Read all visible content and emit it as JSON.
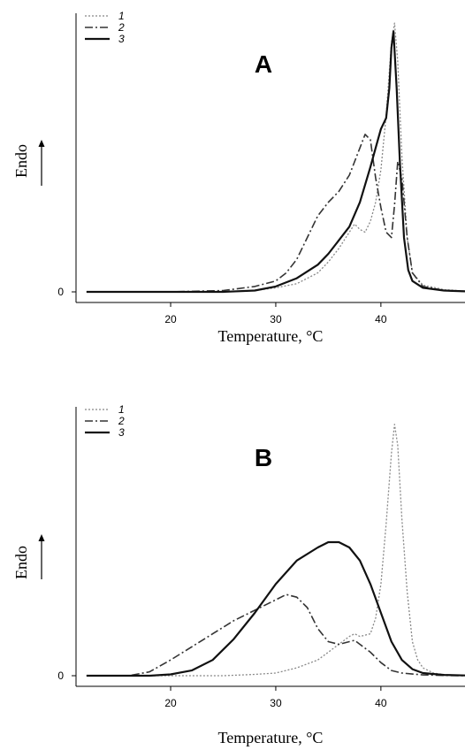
{
  "chart_data": [
    {
      "type": "line",
      "panel_label": "A",
      "xlabel": "Temperature, °C",
      "ylabel": "Endo",
      "xlim": [
        11,
        48
      ],
      "ylim": [
        -0.3,
        10
      ],
      "x_ticks": [
        20,
        30,
        40
      ],
      "y_ticks": [
        0
      ],
      "grid": false,
      "legend_position": "top-left",
      "series": [
        {
          "name": "1",
          "style": "dotted",
          "color": "#888888",
          "points": [
            [
              12,
              0
            ],
            [
              20,
              0
            ],
            [
              25,
              0
            ],
            [
              28,
              0.05
            ],
            [
              30,
              0.15
            ],
            [
              32,
              0.3
            ],
            [
              34,
              0.7
            ],
            [
              35,
              1.1
            ],
            [
              36,
              1.6
            ],
            [
              37,
              2.2
            ],
            [
              37.5,
              2.5
            ],
            [
              38,
              2.3
            ],
            [
              38.5,
              2.2
            ],
            [
              39,
              2.6
            ],
            [
              39.5,
              3.3
            ],
            [
              40,
              4.5
            ],
            [
              40.5,
              6.5
            ],
            [
              41,
              9.2
            ],
            [
              41.3,
              9.9
            ],
            [
              41.6,
              8.5
            ],
            [
              42,
              5.0
            ],
            [
              42.5,
              2.0
            ],
            [
              43,
              0.7
            ],
            [
              44,
              0.25
            ],
            [
              46,
              0.08
            ],
            [
              48,
              0.03
            ]
          ]
        },
        {
          "name": "2",
          "style": "dash-dot",
          "color": "#333333",
          "points": [
            [
              12,
              0
            ],
            [
              20,
              0
            ],
            [
              25,
              0.05
            ],
            [
              28,
              0.2
            ],
            [
              30,
              0.4
            ],
            [
              31,
              0.7
            ],
            [
              32,
              1.2
            ],
            [
              33,
              2.0
            ],
            [
              34,
              2.8
            ],
            [
              35,
              3.3
            ],
            [
              36,
              3.7
            ],
            [
              37,
              4.3
            ],
            [
              38,
              5.3
            ],
            [
              38.5,
              5.8
            ],
            [
              39,
              5.6
            ],
            [
              39.5,
              4.2
            ],
            [
              40,
              3.1
            ],
            [
              40.5,
              2.2
            ],
            [
              41,
              2.0
            ],
            [
              41.3,
              3.2
            ],
            [
              41.6,
              4.8
            ],
            [
              42,
              4.2
            ],
            [
              42.5,
              2.0
            ],
            [
              43,
              0.7
            ],
            [
              44,
              0.2
            ],
            [
              46,
              0.05
            ],
            [
              48,
              0.02
            ]
          ]
        },
        {
          "name": "3",
          "style": "solid",
          "color": "#111111",
          "points": [
            [
              12,
              0
            ],
            [
              20,
              0
            ],
            [
              25,
              0
            ],
            [
              28,
              0.05
            ],
            [
              30,
              0.2
            ],
            [
              32,
              0.5
            ],
            [
              34,
              1.0
            ],
            [
              35,
              1.4
            ],
            [
              36,
              1.9
            ],
            [
              37,
              2.4
            ],
            [
              38,
              3.3
            ],
            [
              39,
              4.6
            ],
            [
              39.5,
              5.3
            ],
            [
              40,
              6.0
            ],
            [
              40.5,
              6.4
            ],
            [
              40.8,
              7.5
            ],
            [
              41,
              9.0
            ],
            [
              41.2,
              9.6
            ],
            [
              41.5,
              7.5
            ],
            [
              41.8,
              4.8
            ],
            [
              42.2,
              2.0
            ],
            [
              42.6,
              0.8
            ],
            [
              43,
              0.4
            ],
            [
              44,
              0.15
            ],
            [
              46,
              0.05
            ],
            [
              48,
              0.02
            ]
          ]
        }
      ]
    },
    {
      "type": "line",
      "panel_label": "B",
      "xlabel": "Temperature, °C",
      "ylabel": "Endo",
      "xlim": [
        11,
        48
      ],
      "ylim": [
        -0.3,
        10
      ],
      "x_ticks": [
        20,
        30,
        40
      ],
      "y_ticks": [
        0
      ],
      "grid": false,
      "legend_position": "top-left",
      "series": [
        {
          "name": "1",
          "style": "dotted",
          "color": "#888888",
          "points": [
            [
              12,
              0
            ],
            [
              20,
              0
            ],
            [
              25,
              0
            ],
            [
              28,
              0.05
            ],
            [
              30,
              0.1
            ],
            [
              32,
              0.3
            ],
            [
              34,
              0.6
            ],
            [
              35,
              0.9
            ],
            [
              36,
              1.2
            ],
            [
              37,
              1.5
            ],
            [
              37.5,
              1.6
            ],
            [
              38,
              1.5
            ],
            [
              39,
              1.6
            ],
            [
              39.5,
              2.2
            ],
            [
              40,
              3.5
            ],
            [
              40.5,
              5.8
            ],
            [
              41,
              8.5
            ],
            [
              41.3,
              9.6
            ],
            [
              41.6,
              8.8
            ],
            [
              42,
              6.0
            ],
            [
              42.5,
              3.2
            ],
            [
              43,
              1.3
            ],
            [
              43.5,
              0.6
            ],
            [
              44,
              0.3
            ],
            [
              45,
              0.1
            ],
            [
              46,
              0.04
            ],
            [
              48,
              0.01
            ]
          ]
        },
        {
          "name": "2",
          "style": "dash-dot",
          "color": "#333333",
          "points": [
            [
              12,
              0
            ],
            [
              16,
              0
            ],
            [
              18,
              0.15
            ],
            [
              20,
              0.6
            ],
            [
              22,
              1.1
            ],
            [
              24,
              1.6
            ],
            [
              26,
              2.1
            ],
            [
              28,
              2.5
            ],
            [
              30,
              2.9
            ],
            [
              31,
              3.1
            ],
            [
              32,
              3.0
            ],
            [
              33,
              2.6
            ],
            [
              34,
              1.8
            ],
            [
              35,
              1.3
            ],
            [
              36,
              1.2
            ],
            [
              37,
              1.3
            ],
            [
              37.5,
              1.35
            ],
            [
              38,
              1.2
            ],
            [
              39,
              0.9
            ],
            [
              40,
              0.5
            ],
            [
              41,
              0.2
            ],
            [
              42,
              0.1
            ],
            [
              44,
              0.03
            ],
            [
              46,
              0.01
            ],
            [
              48,
              0
            ]
          ]
        },
        {
          "name": "3",
          "style": "solid",
          "color": "#111111",
          "points": [
            [
              12,
              0
            ],
            [
              18,
              0
            ],
            [
              20,
              0.05
            ],
            [
              22,
              0.2
            ],
            [
              24,
              0.6
            ],
            [
              26,
              1.4
            ],
            [
              28,
              2.4
            ],
            [
              30,
              3.5
            ],
            [
              32,
              4.4
            ],
            [
              34,
              4.9
            ],
            [
              35,
              5.1
            ],
            [
              36,
              5.1
            ],
            [
              37,
              4.9
            ],
            [
              38,
              4.4
            ],
            [
              39,
              3.5
            ],
            [
              40,
              2.4
            ],
            [
              41,
              1.3
            ],
            [
              42,
              0.6
            ],
            [
              43,
              0.25
            ],
            [
              44,
              0.1
            ],
            [
              46,
              0.03
            ],
            [
              48,
              0.01
            ]
          ]
        }
      ]
    }
  ]
}
